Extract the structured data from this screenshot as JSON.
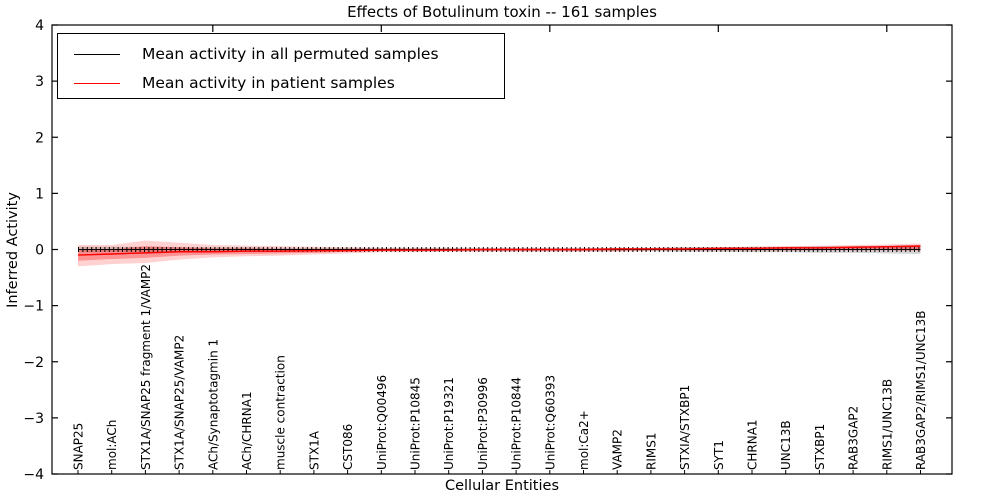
{
  "figure": {
    "background": "#ffffff",
    "axis_color": "#000000"
  },
  "chart_data": {
    "type": "line",
    "title": "Effects of Botulinum toxin -- 161 samples",
    "xlabel": "Cellular Entities",
    "ylabel": "Inferred Activity",
    "ylim": [
      -4,
      4
    ],
    "yticks": [
      4,
      3,
      2,
      1,
      0,
      -1,
      -2,
      -3,
      -4
    ],
    "top_axis_tick_category_indices": [
      4,
      9,
      14,
      19,
      24
    ],
    "grid": false,
    "legend_position": "upper-left",
    "categories": [
      "SNAP25",
      "mol:ACh",
      "STX1A/SNAP25 fragment 1/VAMP2",
      "STX1A/SNAP25/VAMP2",
      "ACh/Synaptotagmin 1",
      "ACh/CHRNA1",
      "muscle contraction",
      "STX1A",
      "CST086",
      "UniProt:Q00496",
      "UniProt:P10845",
      "UniProt:P19321",
      "UniProt:P30996",
      "UniProt:P10844",
      "UniProt:Q60393",
      "mol:Ca2+",
      "VAMP2",
      "RIMS1",
      "STXIA/STXBP1",
      "SYT1",
      "CHRNA1",
      "UNC13B",
      "STXBP1",
      "RAB3GAP2",
      "RIMS1/UNC13B",
      "RAB3GAP2/RIMS1/UNC13B"
    ],
    "series": [
      {
        "name": "Mean activity in all permuted samples",
        "color": "#000000",
        "style": "solid-with-tick-markers",
        "values": [
          0,
          0,
          0,
          0,
          0,
          0,
          0,
          0,
          0,
          0,
          0,
          0,
          0,
          0,
          0,
          0,
          0,
          0,
          0,
          0,
          0,
          0,
          0,
          0,
          0,
          0
        ]
      },
      {
        "name": "Mean activity in patient samples",
        "color": "#ff0000",
        "style": "solid",
        "values": [
          -0.1,
          -0.08,
          -0.06,
          -0.04,
          -0.04,
          -0.03,
          -0.03,
          -0.02,
          -0.02,
          -0.01,
          -0.01,
          -0.01,
          0,
          0,
          0,
          0,
          0.01,
          0.01,
          0.01,
          0.02,
          0.02,
          0.03,
          0.03,
          0.04,
          0.05,
          0.06
        ]
      }
    ],
    "bands": [
      {
        "name": "permuted-samples-range",
        "color": "rgba(0,0,0,0.17)",
        "hi": [
          0.05,
          0.05,
          0.05,
          0.04,
          0.04,
          0.04,
          0.03,
          0.03,
          0.03,
          0.03,
          0.03,
          0.03,
          0.03,
          0.03,
          0.03,
          0.03,
          0.03,
          0.03,
          0.04,
          0.04,
          0.05,
          0.05,
          0.06,
          0.06,
          0.07,
          0.08
        ],
        "lo": [
          -0.05,
          -0.05,
          -0.05,
          -0.04,
          -0.04,
          -0.04,
          -0.03,
          -0.03,
          -0.03,
          -0.03,
          -0.03,
          -0.03,
          -0.03,
          -0.03,
          -0.03,
          -0.03,
          -0.03,
          -0.03,
          -0.04,
          -0.04,
          -0.05,
          -0.05,
          -0.06,
          -0.06,
          -0.07,
          -0.08
        ]
      },
      {
        "name": "patient-samples-range-outer",
        "color": "rgba(255,0,0,0.18)",
        "hi": [
          0.08,
          0.08,
          0.16,
          0.12,
          0.08,
          0.07,
          0.06,
          0.05,
          0.04,
          0.03,
          0.03,
          0.03,
          0.02,
          0.02,
          0.02,
          0.02,
          0.03,
          0.03,
          0.04,
          0.04,
          0.05,
          0.06,
          0.07,
          0.08,
          0.09,
          0.11
        ],
        "lo": [
          -0.3,
          -0.26,
          -0.24,
          -0.18,
          -0.14,
          -0.12,
          -0.11,
          -0.09,
          -0.07,
          -0.05,
          -0.05,
          -0.04,
          -0.04,
          -0.04,
          -0.04,
          -0.04,
          -0.04,
          -0.03,
          -0.03,
          -0.03,
          -0.03,
          -0.03,
          -0.02,
          -0.02,
          -0.02,
          -0.03
        ]
      },
      {
        "name": "patient-samples-range-inner",
        "color": "rgba(255,0,0,0.30)",
        "hi": [
          0.0,
          0.0,
          0.06,
          0.04,
          0.02,
          0.02,
          0.01,
          0.01,
          0.01,
          0.01,
          0.01,
          0.01,
          0.01,
          0.01,
          0.01,
          0.01,
          0.02,
          0.02,
          0.02,
          0.03,
          0.03,
          0.04,
          0.04,
          0.05,
          0.06,
          0.08
        ],
        "lo": [
          -0.2,
          -0.17,
          -0.15,
          -0.11,
          -0.09,
          -0.08,
          -0.07,
          -0.06,
          -0.04,
          -0.03,
          -0.03,
          -0.02,
          -0.02,
          -0.02,
          -0.02,
          -0.02,
          -0.02,
          -0.01,
          -0.01,
          -0.01,
          -0.01,
          -0.01,
          0.0,
          0.0,
          0.0,
          0.0
        ]
      }
    ]
  }
}
